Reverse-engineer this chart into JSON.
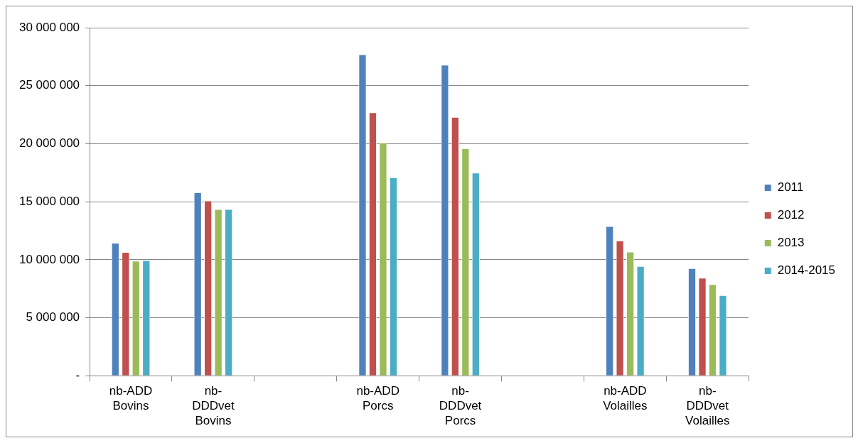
{
  "chart_data": {
    "type": "bar",
    "categories": [
      "nb-ADD Bovins",
      "nb-DDDvet Bovins",
      null,
      "nb-ADD Porcs",
      "nb-DDDvet Porcs",
      null,
      "nb-ADD Volailles",
      "nb-DDDvet Volailles"
    ],
    "series": [
      {
        "name": "2011",
        "color": "#4f81bd",
        "values": [
          11460000,
          15800000,
          null,
          27700000,
          26800000,
          null,
          12900000,
          9270000
        ]
      },
      {
        "name": "2012",
        "color": "#c0504d",
        "values": [
          10670000,
          15100000,
          null,
          22700000,
          22300000,
          null,
          11650000,
          8450000
        ]
      },
      {
        "name": "2013",
        "color": "#9bbb59",
        "values": [
          9910000,
          14360000,
          null,
          20100000,
          19600000,
          null,
          10700000,
          7900000
        ]
      },
      {
        "name": "2014-2015",
        "color": "#4bacc6",
        "values": [
          9960000,
          14360000,
          null,
          17100000,
          17500000,
          null,
          9460000,
          6950000
        ]
      }
    ],
    "ylim": [
      0,
      30000000
    ],
    "yticks": [
      {
        "value": 0,
        "label": "-"
      },
      {
        "value": 5000000,
        "label": "5 000 000"
      },
      {
        "value": 10000000,
        "label": "10 000 000"
      },
      {
        "value": 15000000,
        "label": "15 000 000"
      },
      {
        "value": 20000000,
        "label": "20 000 000"
      },
      {
        "value": 25000000,
        "label": "25 000 000"
      },
      {
        "value": 30000000,
        "label": "30 000 000"
      }
    ],
    "grid": "y",
    "legend": "right"
  }
}
